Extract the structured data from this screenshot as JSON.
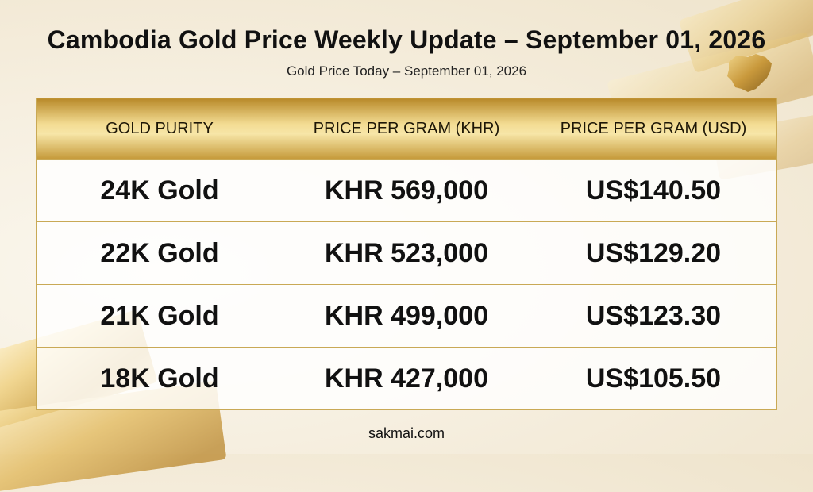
{
  "title": "Cambodia Gold Price Weekly Update – September 01, 2026",
  "subtitle": "Gold Price Today – September 01, 2026",
  "icons": {
    "map": "cambodia-map-icon"
  },
  "colors": {
    "gold_header": "#e9cd86",
    "border": "#c9a955",
    "text": "#111111"
  },
  "table": {
    "headers": [
      "GOLD PURITY",
      "PRICE PER GRAM (KHR)",
      "PRICE PER GRAM (USD)"
    ],
    "rows": [
      [
        "24K Gold",
        "KHR 569,000",
        "US$140.50"
      ],
      [
        "22K Gold",
        "KHR 523,000",
        "US$129.20"
      ],
      [
        "21K Gold",
        "KHR 499,000",
        "US$123.30"
      ],
      [
        "18K Gold",
        "KHR 427,000",
        "US$105.50"
      ]
    ]
  },
  "footer": "sakmai.com"
}
